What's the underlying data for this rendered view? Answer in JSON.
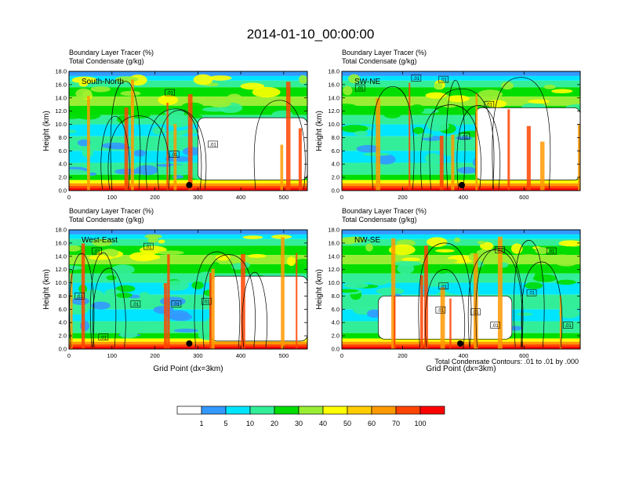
{
  "figure_title": "2014-01-10_00:00:00",
  "chart_data": [
    {
      "type": "heatmap",
      "panel": "South-North",
      "title_line1": "Boundary Layer Tracer   (%)",
      "title_line2": "Total Condensate   (g/kg)",
      "ylabel": "Height (km)",
      "xlabel": "",
      "xlim": [
        0,
        555
      ],
      "ylim": [
        0,
        18
      ],
      "xticks": [
        0,
        100,
        200,
        300,
        400,
        500
      ],
      "yticks": [
        0,
        2,
        4,
        6,
        8,
        10,
        12,
        14,
        16,
        18
      ],
      "marker_x": 280,
      "clear_region": {
        "x": [
          300,
          555
        ],
        "y": [
          1.6,
          11.0
        ]
      },
      "contour_labels": [
        {
          "x": 235,
          "y": 14.8,
          "text": ".01"
        },
        {
          "x": 335,
          "y": 7.0,
          "text": ".01"
        },
        {
          "x": 245,
          "y": 5.5,
          "text": ".01"
        }
      ]
    },
    {
      "type": "heatmap",
      "panel": "SW-NE",
      "title_line1": "Boundary Layer Tracer   (%)",
      "title_line2": "Total Condensate   (g/kg)",
      "ylabel": "Height (km)",
      "xlabel": "",
      "xlim": [
        0,
        785
      ],
      "ylim": [
        0,
        18
      ],
      "xticks": [
        0,
        200,
        400,
        600
      ],
      "yticks": [
        0,
        2,
        4,
        6,
        8,
        10,
        12,
        14,
        16,
        18
      ],
      "marker_x": 395,
      "clear_region": {
        "x": [
          440,
          785
        ],
        "y": [
          1.6,
          12.5
        ]
      },
      "contour_labels": [
        {
          "x": 60,
          "y": 15.5,
          "text": ".01"
        },
        {
          "x": 245,
          "y": 17.0,
          "text": ".01"
        },
        {
          "x": 335,
          "y": 16.8,
          "text": ".01"
        },
        {
          "x": 485,
          "y": 13.0,
          "text": ".01"
        },
        {
          "x": 405,
          "y": 8.2,
          "text": ".01"
        }
      ]
    },
    {
      "type": "heatmap",
      "panel": "West-East",
      "title_line1": "Boundary Layer Tracer   (%)",
      "title_line2": "Total Condensate   (g/kg)",
      "ylabel": "Height (km)",
      "xlabel": "Grid Point (dx=3km)",
      "xlim": [
        0,
        555
      ],
      "ylim": [
        0,
        18
      ],
      "xticks": [
        0,
        100,
        200,
        300,
        400,
        500
      ],
      "yticks": [
        0,
        2,
        4,
        6,
        8,
        10,
        12,
        14,
        16,
        18
      ],
      "marker_x": 280,
      "clear_region": {
        "x": [
          330,
          555
        ],
        "y": [
          1.2,
          11.0
        ]
      },
      "contour_labels": [
        {
          "x": 65,
          "y": 14.8,
          "text": ".01"
        },
        {
          "x": 185,
          "y": 15.5,
          "text": ".01"
        },
        {
          "x": 25,
          "y": 8.0,
          "text": ".01"
        },
        {
          "x": 155,
          "y": 6.8,
          "text": ".01"
        },
        {
          "x": 250,
          "y": 6.8,
          "text": ".01"
        },
        {
          "x": 320,
          "y": 7.2,
          "text": ".01"
        },
        {
          "x": 80,
          "y": 1.8,
          "text": ".01"
        }
      ]
    },
    {
      "type": "heatmap",
      "panel": "NW-SE",
      "title_line1": "Boundary Layer Tracer   (%)",
      "title_line2": "Total Condensate   (g/kg)",
      "ylabel": "Height (km)",
      "xlabel": "Grid Point (dx=3km)",
      "footnote": "Total Condensate Contours: .01 to .01 by .000",
      "xlim": [
        0,
        785
      ],
      "ylim": [
        0,
        18
      ],
      "xticks": [
        0,
        200,
        400,
        600
      ],
      "yticks": [
        0,
        2,
        4,
        6,
        8,
        10,
        12,
        14,
        16,
        18
      ],
      "marker_x": 390,
      "clear_region": {
        "x": [
          120,
          560
        ],
        "y": [
          1.5,
          8.0
        ]
      },
      "contour_labels": [
        {
          "x": 520,
          "y": 15.0,
          "text": ".01"
        },
        {
          "x": 690,
          "y": 14.8,
          "text": ".01"
        },
        {
          "x": 335,
          "y": 9.5,
          "text": ".01"
        },
        {
          "x": 625,
          "y": 8.5,
          "text": ".01"
        },
        {
          "x": 440,
          "y": 5.6,
          "text": ".01"
        },
        {
          "x": 325,
          "y": 5.9,
          "text": ".01"
        },
        {
          "x": 505,
          "y": 3.6,
          "text": ".01"
        },
        {
          "x": 745,
          "y": 3.6,
          "text": ".01"
        }
      ]
    }
  ],
  "colorbar": {
    "levels": [
      "1",
      "5",
      "10",
      "20",
      "30",
      "40",
      "50",
      "60",
      "70",
      "100"
    ],
    "colors": [
      "#ffffff",
      "#3399ff",
      "#00e5ff",
      "#33ee99",
      "#00dd00",
      "#99ee33",
      "#ffff00",
      "#ffcc00",
      "#ff9900",
      "#ff4400",
      "#ff0000"
    ]
  }
}
